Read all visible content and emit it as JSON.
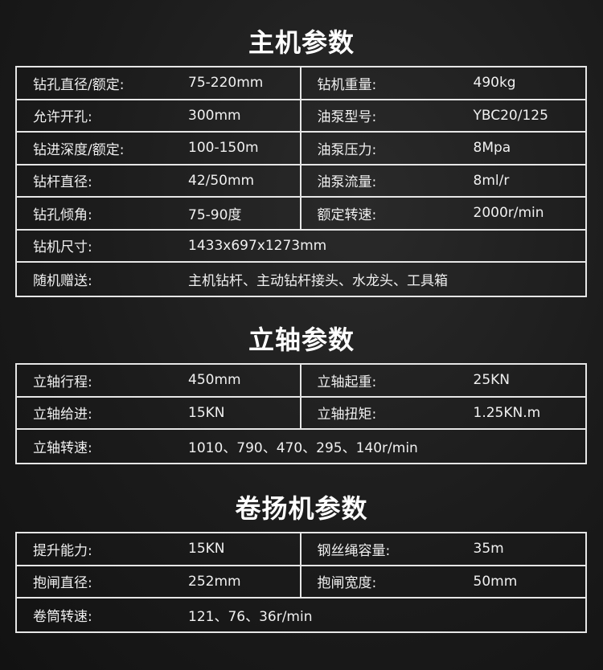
{
  "sections": [
    {
      "title": "主机参数",
      "rows": [
        [
          {
            "label": "钻孔直径/额定:",
            "value": "75-220mm"
          },
          {
            "label": "钻机重量:",
            "value": "490kg"
          }
        ],
        [
          {
            "label": "允许开孔:",
            "value": "300mm"
          },
          {
            "label": "油泵型号:",
            "value": "YBC20/125"
          }
        ],
        [
          {
            "label": "钻进深度/额定:",
            "value": "100-150m"
          },
          {
            "label": "油泵压力:",
            "value": "8Mpa"
          }
        ],
        [
          {
            "label": "钻杆直径:",
            "value": "42/50mm"
          },
          {
            "label": "油泵流量:",
            "value": "8ml/r"
          }
        ],
        [
          {
            "label": "钻孔倾角:",
            "value": "75-90度"
          },
          {
            "label": "额定转速:",
            "value": "2000r/min"
          }
        ],
        [
          {
            "label": "钻机尺寸:",
            "value": "1433x697x1273mm"
          }
        ],
        [
          {
            "label": "随机赠送:",
            "value": "主机钻杆、主动钻杆接头、水龙头、工具箱"
          }
        ]
      ]
    },
    {
      "title": "立轴参数",
      "rows": [
        [
          {
            "label": "立轴行程:",
            "value": "450mm"
          },
          {
            "label": "立轴起重:",
            "value": "25KN"
          }
        ],
        [
          {
            "label": "立轴给进:",
            "value": "15KN"
          },
          {
            "label": "立轴扭矩:",
            "value": "1.25KN.m"
          }
        ],
        [
          {
            "label": "立轴转速:",
            "value": "1010、790、470、295、140r/min"
          }
        ]
      ]
    },
    {
      "title": "卷扬机参数",
      "rows": [
        [
          {
            "label": "提升能力:",
            "value": "15KN"
          },
          {
            "label": "钢丝绳容量:",
            "value": "35m"
          }
        ],
        [
          {
            "label": "抱闸直径:",
            "value": "252mm"
          },
          {
            "label": "抱闸宽度:",
            "value": "50mm"
          }
        ],
        [
          {
            "label": "卷筒转速:",
            "value": "121、76、36r/min"
          }
        ]
      ]
    }
  ]
}
